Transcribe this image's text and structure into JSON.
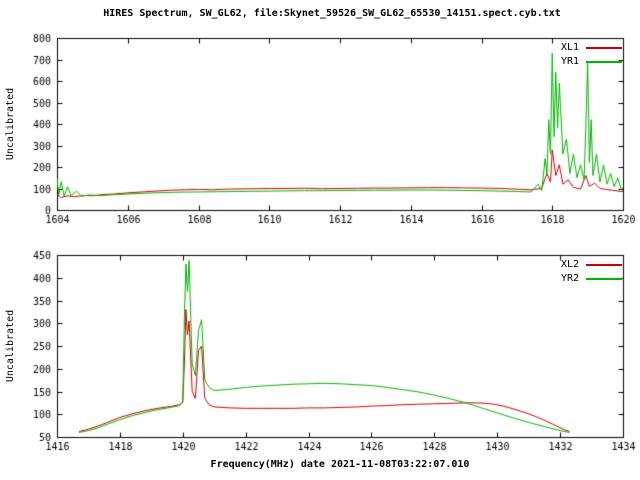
{
  "title": "HIRES Spectrum, SW_GL62, file:Skynet_59526_SW_GL62_65530_14151.spect.cyb.txt",
  "xlabel": "Frequency(MHz) date 2021-11-08T03:22:07.010",
  "colors": {
    "red": "#cc0000",
    "green": "#00b400",
    "axis": "#000000",
    "background": "#ffffff"
  },
  "chart_data": [
    {
      "type": "line",
      "ylabel": "Uncalibrated",
      "xlim": [
        1604,
        1620
      ],
      "ylim": [
        0,
        800
      ],
      "xticks": [
        1604,
        1606,
        1608,
        1610,
        1612,
        1614,
        1616,
        1618,
        1620
      ],
      "yticks": [
        0,
        100,
        200,
        300,
        400,
        500,
        600,
        700,
        800
      ],
      "legend_position": "top-right",
      "series": [
        {
          "name": "XL1",
          "color": "#cc0000",
          "points": [
            [
              1604.0,
              75
            ],
            [
              1604.1,
              58
            ],
            [
              1604.3,
              66
            ],
            [
              1604.5,
              62
            ],
            [
              1604.8,
              68
            ],
            [
              1605.0,
              66
            ],
            [
              1605.3,
              72
            ],
            [
              1605.6,
              74
            ],
            [
              1606.0,
              80
            ],
            [
              1606.4,
              84
            ],
            [
              1606.8,
              88
            ],
            [
              1607.2,
              92
            ],
            [
              1607.6,
              94
            ],
            [
              1608.0,
              96
            ],
            [
              1608.4,
              94
            ],
            [
              1608.8,
              97
            ],
            [
              1609.2,
              98
            ],
            [
              1609.6,
              99
            ],
            [
              1610.0,
              100
            ],
            [
              1610.5,
              100
            ],
            [
              1611.0,
              101
            ],
            [
              1611.5,
              99
            ],
            [
              1612.0,
              100
            ],
            [
              1612.5,
              101
            ],
            [
              1613.0,
              102
            ],
            [
              1613.5,
              102
            ],
            [
              1614.0,
              103
            ],
            [
              1614.5,
              104
            ],
            [
              1615.0,
              104
            ],
            [
              1615.5,
              103
            ],
            [
              1616.0,
              102
            ],
            [
              1616.5,
              100
            ],
            [
              1617.0,
              97
            ],
            [
              1617.4,
              94
            ],
            [
              1617.7,
              100
            ],
            [
              1617.85,
              170
            ],
            [
              1617.95,
              130
            ],
            [
              1618.0,
              280
            ],
            [
              1618.1,
              160
            ],
            [
              1618.2,
              210
            ],
            [
              1618.3,
              120
            ],
            [
              1618.45,
              140
            ],
            [
              1618.6,
              105
            ],
            [
              1618.8,
              98
            ],
            [
              1618.95,
              160
            ],
            [
              1619.05,
              110
            ],
            [
              1619.2,
              125
            ],
            [
              1619.35,
              100
            ],
            [
              1619.5,
              96
            ],
            [
              1619.7,
              92
            ],
            [
              1619.85,
              88
            ],
            [
              1620.0,
              86
            ]
          ]
        },
        {
          "name": "YR1",
          "color": "#00b400",
          "points": [
            [
              1604.0,
              148
            ],
            [
              1604.05,
              70
            ],
            [
              1604.12,
              132
            ],
            [
              1604.2,
              64
            ],
            [
              1604.3,
              108
            ],
            [
              1604.4,
              66
            ],
            [
              1604.55,
              88
            ],
            [
              1604.7,
              64
            ],
            [
              1604.9,
              70
            ],
            [
              1605.2,
              67
            ],
            [
              1605.6,
              71
            ],
            [
              1606.0,
              74
            ],
            [
              1606.5,
              78
            ],
            [
              1607.0,
              81
            ],
            [
              1607.5,
              83
            ],
            [
              1608.0,
              84
            ],
            [
              1608.5,
              85
            ],
            [
              1609.0,
              86
            ],
            [
              1609.5,
              87
            ],
            [
              1610.0,
              88
            ],
            [
              1610.5,
              89
            ],
            [
              1611.0,
              90
            ],
            [
              1611.5,
              90
            ],
            [
              1612.0,
              91
            ],
            [
              1612.5,
              91
            ],
            [
              1613.0,
              92
            ],
            [
              1613.5,
              92
            ],
            [
              1614.0,
              93
            ],
            [
              1614.5,
              93
            ],
            [
              1615.0,
              92
            ],
            [
              1615.5,
              91
            ],
            [
              1616.0,
              90
            ],
            [
              1616.5,
              88
            ],
            [
              1617.0,
              86
            ],
            [
              1617.4,
              84
            ],
            [
              1617.6,
              120
            ],
            [
              1617.7,
              90
            ],
            [
              1617.8,
              240
            ],
            [
              1617.85,
              160
            ],
            [
              1617.9,
              420
            ],
            [
              1617.95,
              260
            ],
            [
              1618.0,
              730
            ],
            [
              1618.05,
              340
            ],
            [
              1618.1,
              640
            ],
            [
              1618.15,
              380
            ],
            [
              1618.2,
              590
            ],
            [
              1618.3,
              260
            ],
            [
              1618.4,
              330
            ],
            [
              1618.5,
              170
            ],
            [
              1618.6,
              260
            ],
            [
              1618.7,
              150
            ],
            [
              1618.8,
              210
            ],
            [
              1618.9,
              140
            ],
            [
              1618.95,
              390
            ],
            [
              1619.0,
              690
            ],
            [
              1619.05,
              220
            ],
            [
              1619.1,
              420
            ],
            [
              1619.15,
              160
            ],
            [
              1619.25,
              260
            ],
            [
              1619.35,
              130
            ],
            [
              1619.45,
              210
            ],
            [
              1619.55,
              120
            ],
            [
              1619.65,
              170
            ],
            [
              1619.75,
              108
            ],
            [
              1619.85,
              150
            ],
            [
              1619.95,
              95
            ],
            [
              1620.0,
              105
            ]
          ]
        }
      ]
    },
    {
      "type": "line",
      "ylabel": "Uncalibrated",
      "xlim": [
        1416,
        1434
      ],
      "ylim": [
        50,
        450
      ],
      "xticks": [
        1416,
        1418,
        1420,
        1422,
        1424,
        1426,
        1428,
        1430,
        1432,
        1434
      ],
      "yticks": [
        50,
        100,
        150,
        200,
        250,
        300,
        350,
        400,
        450
      ],
      "legend_position": "top-right",
      "series": [
        {
          "name": "XL2",
          "color": "#cc0000",
          "points": [
            [
              1416.7,
              62
            ],
            [
              1417.0,
              67
            ],
            [
              1417.3,
              74
            ],
            [
              1417.6,
              82
            ],
            [
              1418.0,
              93
            ],
            [
              1418.4,
              101
            ],
            [
              1418.8,
              108
            ],
            [
              1419.2,
              113
            ],
            [
              1419.6,
              117
            ],
            [
              1419.9,
              121
            ],
            [
              1420.0,
              126
            ],
            [
              1420.05,
              210
            ],
            [
              1420.1,
              330
            ],
            [
              1420.15,
              275
            ],
            [
              1420.2,
              305
            ],
            [
              1420.3,
              150
            ],
            [
              1420.4,
              135
            ],
            [
              1420.5,
              240
            ],
            [
              1420.6,
              250
            ],
            [
              1420.7,
              135
            ],
            [
              1420.85,
              120
            ],
            [
              1421.0,
              116
            ],
            [
              1421.5,
              114
            ],
            [
              1422.0,
              113
            ],
            [
              1422.5,
              113
            ],
            [
              1423.0,
              113
            ],
            [
              1423.5,
              113
            ],
            [
              1424.0,
              114
            ],
            [
              1424.5,
              114
            ],
            [
              1425.0,
              115
            ],
            [
              1425.5,
              116
            ],
            [
              1426.0,
              118
            ],
            [
              1426.5,
              119
            ],
            [
              1427.0,
              121
            ],
            [
              1427.5,
              122
            ],
            [
              1428.0,
              123
            ],
            [
              1428.5,
              124
            ],
            [
              1429.0,
              125
            ],
            [
              1429.4,
              125
            ],
            [
              1429.8,
              123
            ],
            [
              1430.2,
              118
            ],
            [
              1430.6,
              110
            ],
            [
              1431.0,
              101
            ],
            [
              1431.4,
              90
            ],
            [
              1431.8,
              77
            ],
            [
              1432.1,
              67
            ],
            [
              1432.3,
              62
            ]
          ]
        },
        {
          "name": "YR2",
          "color": "#00b400",
          "points": [
            [
              1416.7,
              60
            ],
            [
              1417.0,
              64
            ],
            [
              1417.3,
              70
            ],
            [
              1417.6,
              78
            ],
            [
              1418.0,
              88
            ],
            [
              1418.4,
              97
            ],
            [
              1418.8,
              104
            ],
            [
              1419.2,
              110
            ],
            [
              1419.6,
              115
            ],
            [
              1419.9,
              119
            ],
            [
              1420.0,
              128
            ],
            [
              1420.05,
              310
            ],
            [
              1420.1,
              430
            ],
            [
              1420.15,
              370
            ],
            [
              1420.2,
              438
            ],
            [
              1420.3,
              210
            ],
            [
              1420.4,
              185
            ],
            [
              1420.5,
              285
            ],
            [
              1420.6,
              308
            ],
            [
              1420.7,
              175
            ],
            [
              1420.85,
              158
            ],
            [
              1421.0,
              152
            ],
            [
              1421.5,
              155
            ],
            [
              1422.0,
              159
            ],
            [
              1422.5,
              162
            ],
            [
              1423.0,
              164
            ],
            [
              1423.5,
              166
            ],
            [
              1424.0,
              167
            ],
            [
              1424.5,
              168
            ],
            [
              1425.0,
              167
            ],
            [
              1425.5,
              165
            ],
            [
              1426.0,
              163
            ],
            [
              1426.5,
              159
            ],
            [
              1427.0,
              154
            ],
            [
              1427.5,
              149
            ],
            [
              1428.0,
              142
            ],
            [
              1428.5,
              134
            ],
            [
              1429.0,
              125
            ],
            [
              1429.5,
              114
            ],
            [
              1430.0,
              103
            ],
            [
              1430.5,
              92
            ],
            [
              1431.0,
              82
            ],
            [
              1431.5,
              73
            ],
            [
              1432.0,
              64
            ],
            [
              1432.3,
              60
            ]
          ]
        }
      ]
    }
  ]
}
